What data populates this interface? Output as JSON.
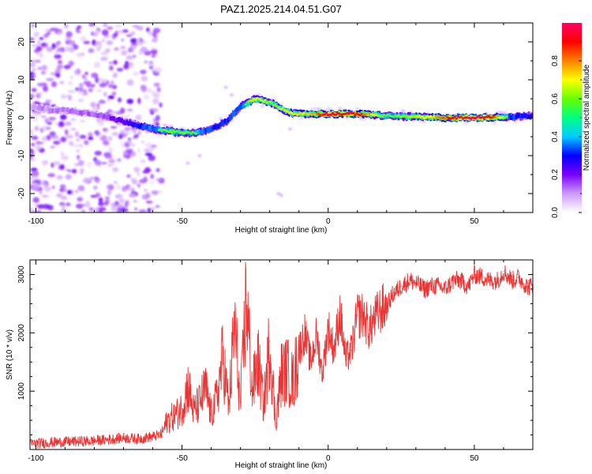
{
  "title": "PAZ1.2025.214.04.51.G07",
  "chart_data": [
    {
      "type": "heatmap",
      "title": "PAZ1.2025.214.04.51.G07",
      "xlabel": "Height of straight line (km)",
      "ylabel": "Frequency (Hz)",
      "xlim": [
        -102,
        70
      ],
      "ylim": [
        -25,
        25
      ],
      "x_ticks": [
        -100,
        -50,
        0,
        50
      ],
      "y_ticks": [
        20,
        10,
        0,
        -10,
        -20
      ],
      "x_tick_labels": [
        "-100",
        "-50",
        "0",
        "50"
      ],
      "y_tick_labels": [
        "20",
        "10",
        "0",
        "-10",
        "-20"
      ],
      "ridge": {
        "x": [
          -102,
          -95,
          -90,
          -85,
          -80,
          -75,
          -70,
          -65,
          -60,
          -55,
          -50,
          -45,
          -40,
          -35,
          -30,
          -25,
          -20,
          -15,
          -12,
          -10,
          -5,
          0,
          10,
          20,
          30,
          40,
          50,
          60,
          70
        ],
        "y": [
          3,
          2,
          2,
          1.5,
          1,
          0,
          -1,
          -2,
          -3,
          -3.5,
          -4,
          -4,
          -3,
          -1,
          3,
          5,
          4,
          2,
          1,
          1,
          1,
          1,
          1,
          0.5,
          0.2,
          0,
          0,
          0.2,
          0.5
        ]
      },
      "ridge_amplitude": {
        "x": [
          -102,
          -80,
          -72,
          -65,
          -55,
          -45,
          -38,
          -30,
          -25,
          -20,
          -12,
          -5,
          0,
          10,
          20,
          35,
          45,
          55,
          62,
          70
        ],
        "amp": [
          0.15,
          0.2,
          0.3,
          0.45,
          0.6,
          0.55,
          0.45,
          0.5,
          0.7,
          0.6,
          0.7,
          0.75,
          0.95,
          0.9,
          0.55,
          0.7,
          0.98,
          0.95,
          0.5,
          0.4
        ]
      },
      "noise_region_x": [
        -102,
        -57
      ],
      "grid": false,
      "colorbar": {
        "label": "Normalized spectral amplitude",
        "range": [
          0,
          1
        ],
        "ticks": [
          0.0,
          0.2,
          0.4,
          0.6,
          0.8
        ],
        "tick_labels": [
          "0.0",
          "0.2",
          "0.4",
          "0.6",
          "0.8"
        ],
        "colors": [
          "#ffffff",
          "#cc99ff",
          "#7a00ff",
          "#0000ff",
          "#00ccff",
          "#00ff80",
          "#66ff00",
          "#ffff00",
          "#ff8000",
          "#ff0000",
          "#ff0066"
        ]
      }
    },
    {
      "type": "line",
      "xlabel": "Height of straight line (km)",
      "ylabel": "SNR (10 * v/v)",
      "xlim": [
        -102,
        70
      ],
      "ylim": [
        0,
        3250
      ],
      "x_ticks": [
        -100,
        -50,
        0,
        50
      ],
      "y_ticks": [
        1000,
        2000,
        3000
      ],
      "x_tick_labels": [
        "-100",
        "-50",
        "0",
        "50"
      ],
      "y_tick_labels": [
        "1000",
        "2000",
        "3000"
      ],
      "color": "#ee3333",
      "grid": false,
      "series": [
        {
          "x": [
            -102,
            -95,
            -90,
            -85,
            -80,
            -75,
            -70,
            -65,
            -60,
            -57,
            -55,
            -52,
            -50,
            -48,
            -46,
            -44,
            -42,
            -40,
            -38,
            -36,
            -34,
            -32,
            -30,
            -28,
            -26,
            -24,
            -22,
            -20,
            -18,
            -16,
            -14,
            -12,
            -10,
            -8,
            -6,
            -4,
            -2,
            0,
            2,
            4,
            6,
            8,
            10,
            12,
            14,
            16,
            18,
            20,
            22,
            25,
            28,
            30,
            33,
            35,
            38,
            40,
            43,
            45,
            48,
            50,
            53,
            55,
            58,
            60,
            63,
            65,
            68,
            70
          ],
          "y": [
            100,
            120,
            130,
            140,
            150,
            170,
            200,
            180,
            220,
            260,
            500,
            600,
            700,
            1100,
            650,
            800,
            1050,
            600,
            900,
            1600,
            700,
            2150,
            750,
            2650,
            1000,
            1500,
            750,
            1850,
            450,
            1300,
            1350,
            1150,
            1700,
            2000,
            1500,
            1950,
            1300,
            2100,
            1700,
            2350,
            1550,
            1700,
            2300,
            2300,
            2050,
            2250,
            2400,
            2450,
            2650,
            2800,
            2900,
            2850,
            2750,
            2800,
            2800,
            2750,
            2900,
            2900,
            2800,
            3000,
            2950,
            2900,
            2900,
            3050,
            2900,
            2950,
            2800,
            2800
          ]
        }
      ]
    }
  ]
}
